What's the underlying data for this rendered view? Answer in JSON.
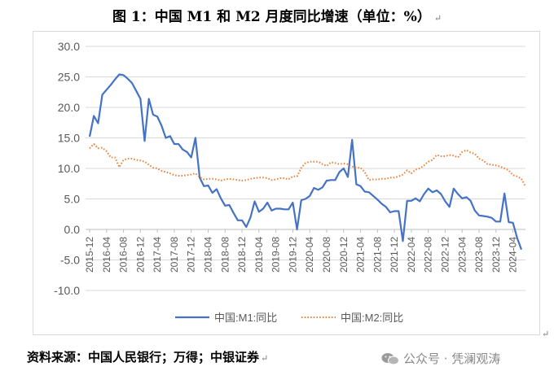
{
  "title": "图 1：中国 M1 和 M2 月度同比增速（单位：%）",
  "paragraph_mark": "↵",
  "footer": "资料来源：中国人民银行；万得；中银证券",
  "watermark": "公众号 · 凭澜观涛",
  "watermark_icon": "wechat-icon",
  "colors": {
    "m1": "#4472C4",
    "m2": "#ED7D31",
    "grid": "#d9d9d9",
    "axis": "#595959"
  },
  "chart_data": {
    "type": "line",
    "ylim": [
      -10,
      30
    ],
    "yticks": [
      "30.0",
      "25.0",
      "20.0",
      "15.0",
      "10.0",
      "5.0",
      "0.0",
      "-5.0",
      "-10.0"
    ],
    "x_tick_labels": [
      "2015-12",
      "2016-04",
      "2016-08",
      "2016-12",
      "2017-04",
      "2017-08",
      "2017-12",
      "2018-04",
      "2018-08",
      "2018-12",
      "2019-04",
      "2019-08",
      "2019-12",
      "2020-04",
      "2020-08",
      "2020-12",
      "2021-04",
      "2021-08",
      "2021-12",
      "2022-04",
      "2022-08",
      "2022-12",
      "2023-04",
      "2023-08",
      "2023-12",
      "2024-04"
    ],
    "x_start": "2015-12",
    "legend_position": "bottom",
    "gridlines": "horizontal",
    "series": [
      {
        "name": "中国:M1:同比",
        "style": "solid",
        "values": [
          15.2,
          18.6,
          17.4,
          22.1,
          22.9,
          23.7,
          24.6,
          25.4,
          25.3,
          24.7,
          24.0,
          22.7,
          21.4,
          14.5,
          21.4,
          18.8,
          18.5,
          17.0,
          15.0,
          15.3,
          14.0,
          14.0,
          13.1,
          12.7,
          11.8,
          15.0,
          8.5,
          7.1,
          7.2,
          6.0,
          6.6,
          5.1,
          3.9,
          4.0,
          2.7,
          1.5,
          1.5,
          0.4,
          2.0,
          4.6,
          2.9,
          3.4,
          4.4,
          3.1,
          3.4,
          3.4,
          3.3,
          3.3,
          4.4,
          0.0,
          4.8,
          5.0,
          5.5,
          6.8,
          6.5,
          6.9,
          8.0,
          8.1,
          8.1,
          9.4,
          10.0,
          8.6,
          14.7,
          7.4,
          7.1,
          6.2,
          6.1,
          5.5,
          4.9,
          4.2,
          3.7,
          2.8,
          3.0,
          3.0,
          -1.9,
          4.7,
          4.7,
          5.1,
          4.6,
          5.8,
          6.7,
          6.1,
          6.4,
          5.8,
          4.6,
          3.7,
          6.7,
          5.8,
          5.1,
          5.3,
          4.7,
          3.1,
          2.3,
          2.2,
          2.1,
          1.9,
          1.3,
          1.3,
          5.9,
          1.2,
          1.1,
          -1.4,
          -3.3
        ]
      },
      {
        "name": "中国:M2:同比",
        "style": "dotted",
        "values": [
          13.3,
          14.0,
          13.3,
          13.4,
          12.8,
          11.8,
          11.8,
          10.2,
          11.4,
          11.6,
          11.6,
          11.4,
          11.3,
          11.1,
          10.6,
          10.1,
          10.0,
          9.6,
          9.4,
          9.2,
          8.9,
          8.8,
          8.8,
          8.9,
          9.0,
          9.2,
          8.6,
          8.2,
          8.3,
          8.3,
          8.2,
          8.0,
          8.2,
          8.3,
          8.2,
          8.1,
          8.0,
          8.1,
          8.3,
          8.4,
          8.5,
          8.5,
          8.4,
          8.1,
          8.2,
          8.4,
          8.4,
          8.2,
          8.7,
          8.7,
          10.1,
          10.9,
          11.1,
          11.1,
          11.1,
          10.7,
          10.4,
          11.0,
          10.9,
          10.7,
          10.8,
          10.7,
          10.3,
          10.1,
          10.1,
          9.4,
          8.1,
          8.2,
          8.2,
          8.3,
          8.3,
          8.5,
          8.5,
          8.7,
          9.0,
          9.7,
          9.2,
          9.8,
          10.0,
          10.5,
          11.1,
          11.4,
          12.2,
          12.0,
          12.0,
          12.2,
          12.1,
          11.8,
          12.7,
          13.0,
          12.6,
          12.4,
          11.6,
          11.3,
          10.7,
          10.6,
          10.5,
          10.3,
          10.0,
          9.7,
          8.9,
          8.7,
          8.3,
          7.0
        ]
      }
    ]
  }
}
